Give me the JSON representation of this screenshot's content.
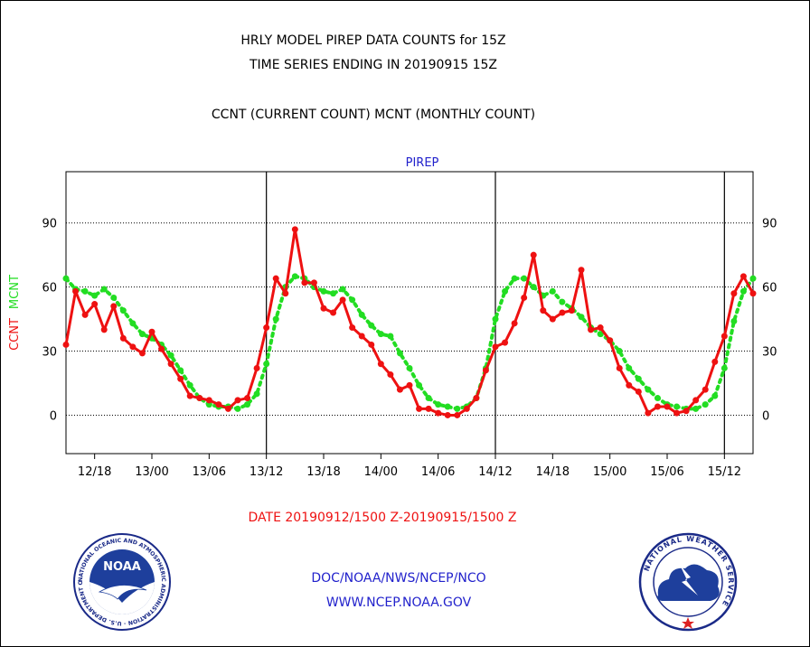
{
  "header": {
    "title_line1": "HRLY MODEL PIREP DATA COUNTS for 15Z",
    "title_line2": "TIME SERIES ENDING IN 20190915 15Z",
    "subtitle": "CCNT (CURRENT COUNT) MCNT (MONTHLY COUNT)"
  },
  "footer": {
    "date_range": "DATE 20190912/1500 Z-20190915/1500 Z",
    "org_line": "DOC/NOAA/NWS/NCEP/NCO",
    "url_line": "WWW.NCEP.NOAA.GOV"
  },
  "logos": {
    "noaa_label": "NOAA",
    "noaa_ring_text": "NATIONAL OCEANIC AND ATMOSPHERIC ADMINISTRATION · U.S. DEPARTMENT OF COMMERCE",
    "nws_ring_text": "NATIONAL WEATHER SERVICE"
  },
  "colors": {
    "ccnt": "#ee1111",
    "mcnt": "#22dd22",
    "panel_label": "#2222cc",
    "date_text": "#ee1111",
    "org_text": "#2222cc"
  },
  "chart_data": {
    "type": "line",
    "title": "PIREP",
    "ylabel_left": [
      "CCNT",
      "MCNT"
    ],
    "ylim": [
      -18,
      114
    ],
    "yticks": [
      0,
      30,
      60,
      90
    ],
    "grid": true,
    "xlim": [
      0,
      72
    ],
    "x_tick_labels": [
      {
        "x": 3,
        "label": "12/18"
      },
      {
        "x": 9,
        "label": "13/00"
      },
      {
        "x": 15,
        "label": "13/06"
      },
      {
        "x": 21,
        "label": "13/12"
      },
      {
        "x": 27,
        "label": "13/18"
      },
      {
        "x": 33,
        "label": "14/00"
      },
      {
        "x": 39,
        "label": "14/06"
      },
      {
        "x": 45,
        "label": "14/12"
      },
      {
        "x": 51,
        "label": "14/18"
      },
      {
        "x": 57,
        "label": "15/00"
      },
      {
        "x": 63,
        "label": "15/06"
      },
      {
        "x": 69,
        "label": "15/12"
      }
    ],
    "day_boundaries": [
      21,
      45,
      69
    ],
    "series": [
      {
        "name": "CCNT",
        "values": [
          33,
          58,
          47,
          52,
          40,
          51,
          36,
          32,
          29,
          39,
          31,
          24,
          17,
          9,
          8,
          7,
          5,
          3,
          7,
          8,
          22,
          41,
          64,
          57,
          87,
          62,
          62,
          50,
          48,
          54,
          41,
          37,
          33,
          24,
          19,
          12,
          14,
          3,
          3,
          1,
          0,
          0,
          3,
          8,
          21,
          32,
          34,
          43,
          55,
          75,
          49,
          45,
          48,
          49,
          68,
          40,
          41,
          35,
          22,
          14,
          11,
          1,
          4,
          4,
          1,
          2,
          7,
          12,
          25,
          37,
          57,
          65,
          57
        ]
      },
      {
        "name": "MCNT",
        "values": [
          64,
          59,
          58,
          56,
          59,
          55,
          49,
          43,
          38,
          36,
          33,
          28,
          21,
          14,
          8,
          5,
          4,
          4,
          3,
          5,
          10,
          24,
          45,
          60,
          65,
          64,
          60,
          58,
          57,
          59,
          54,
          47,
          42,
          38,
          37,
          29,
          22,
          14,
          8,
          5,
          4,
          3,
          4,
          8,
          22,
          45,
          58,
          64,
          64,
          60,
          56,
          58,
          53,
          50,
          46,
          41,
          38,
          35,
          30,
          22,
          17,
          12,
          8,
          5,
          4,
          3,
          3,
          5,
          9,
          22,
          44,
          58,
          64
        ]
      }
    ]
  }
}
